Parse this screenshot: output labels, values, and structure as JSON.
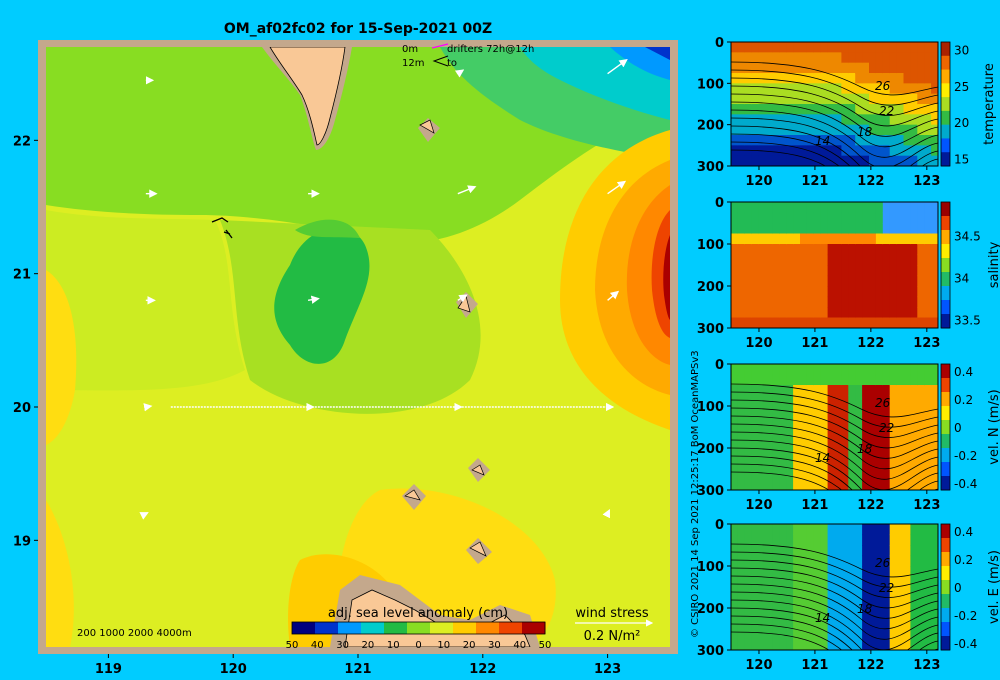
{
  "title": "OM_af02fc02 for 15-Sep-2021 00Z",
  "legend_drifters": {
    "row1_depth": "0m",
    "row2_depth": "12m",
    "label": "drifters 72h@12h",
    "to": "to"
  },
  "depth_key": "200  1000  2000  4000m",
  "sla_colorbar": {
    "title": "adj. sea level anomaly (cm)",
    "ticks": [
      "50",
      "40",
      "30",
      "20",
      "10",
      "0",
      "10",
      "20",
      "30",
      "40",
      "50"
    ]
  },
  "wind_key": {
    "title": "wind stress",
    "value": "0.2 N/m²"
  },
  "credit": "© CSIRO 2021   14 Sep 2021 12:25:17 BoM OceanMAPSv3",
  "colors": {
    "background": "#00ccff",
    "land": "#f9c896",
    "shelf": "#c4a88c",
    "sla_scale": [
      "#00007f",
      "#0033cc",
      "#0099ff",
      "#00cccc",
      "#22bb44",
      "#88dd22",
      "#ddee22",
      "#ffcc00",
      "#ff8800",
      "#ee4400",
      "#aa0000"
    ]
  },
  "chart_data": [
    {
      "type": "heatmap",
      "name": "sea level anomaly map",
      "title": "OM_af02fc02 for 15-Sep-2021 00Z",
      "colorbar_label": "adj. sea level anomaly (cm)",
      "color_range": [
        -50,
        50
      ],
      "xlim": [
        118.5,
        123.5
      ],
      "ylim": [
        18.2,
        22.7
      ],
      "x_ticks": [
        "119",
        "120",
        "121",
        "122",
        "123"
      ],
      "y_ticks": [
        "19",
        "20",
        "21",
        "22"
      ],
      "features": {
        "positive_anomaly_center": {
          "lon": 123.4,
          "lat": 21.0,
          "value_cm": 45
        },
        "negative_anomaly_center": {
          "lon": 120.8,
          "lat": 20.8,
          "value_cm": 0
        },
        "northeast_low": {
          "lon": 123.2,
          "lat": 22.6,
          "value_cm": -30
        }
      },
      "transect": {
        "lat": 20.0,
        "lon_start": 119.5,
        "lon_end": 123.0
      },
      "wind_stress_vectors": [
        {
          "lon": 119.3,
          "lat": 22.45,
          "u": 0.04,
          "v": 0.0
        },
        {
          "lon": 119.3,
          "lat": 21.6,
          "u": 0.06,
          "v": 0.0
        },
        {
          "lon": 119.3,
          "lat": 20.8,
          "u": 0.05,
          "v": 0.0
        },
        {
          "lon": 119.3,
          "lat": 20.0,
          "u": 0.03,
          "v": 0.005
        },
        {
          "lon": 119.3,
          "lat": 19.2,
          "u": 0.01,
          "v": 0.005
        },
        {
          "lon": 120.6,
          "lat": 21.6,
          "u": 0.06,
          "v": 0.0
        },
        {
          "lon": 120.6,
          "lat": 20.8,
          "u": 0.06,
          "v": 0.01
        },
        {
          "lon": 120.6,
          "lat": 20.0,
          "u": 0.03,
          "v": 0.0
        },
        {
          "lon": 121.8,
          "lat": 22.5,
          "u": 0.03,
          "v": 0.02
        },
        {
          "lon": 121.8,
          "lat": 21.6,
          "u": 0.1,
          "v": 0.04
        },
        {
          "lon": 121.8,
          "lat": 20.8,
          "u": 0.05,
          "v": 0.03
        },
        {
          "lon": 121.8,
          "lat": 20.0,
          "u": 0.02,
          "v": 0.0
        },
        {
          "lon": 123.0,
          "lat": 22.5,
          "u": 0.11,
          "v": 0.08
        },
        {
          "lon": 123.0,
          "lat": 21.6,
          "u": 0.1,
          "v": 0.07
        },
        {
          "lon": 123.0,
          "lat": 20.8,
          "u": 0.06,
          "v": 0.05
        },
        {
          "lon": 123.0,
          "lat": 20.0,
          "u": 0.03,
          "v": 0.0
        },
        {
          "lon": 123.0,
          "lat": 19.2,
          "u": 0.01,
          "v": 0.02
        }
      ]
    },
    {
      "type": "heatmap",
      "name": "temperature section",
      "ylabel": "temperature",
      "x_ticks": [
        "120",
        "121",
        "122",
        "123"
      ],
      "y_ticks": [
        "0",
        "100",
        "200",
        "300"
      ],
      "xlim": [
        119.5,
        123.2
      ],
      "ylim": [
        300,
        0
      ],
      "color_range": [
        14,
        31
      ],
      "colorbar_ticks": [
        "15",
        "20",
        "25",
        "30"
      ],
      "contour_labels": [
        "26",
        "22",
        "18",
        "14"
      ]
    },
    {
      "type": "heatmap",
      "name": "salinity section",
      "ylabel": "salinity",
      "x_ticks": [
        "120",
        "121",
        "122",
        "123"
      ],
      "y_ticks": [
        "0",
        "100",
        "200",
        "300"
      ],
      "xlim": [
        119.5,
        123.2
      ],
      "ylim": [
        300,
        0
      ],
      "color_range": [
        33.4,
        34.9
      ],
      "colorbar_ticks": [
        "33.5",
        "34",
        "34.5"
      ]
    },
    {
      "type": "heatmap",
      "name": "northward velocity section",
      "ylabel": "vel. N (m/s)",
      "x_ticks": [
        "120",
        "121",
        "122",
        "123"
      ],
      "y_ticks": [
        "0",
        "100",
        "200",
        "300"
      ],
      "xlim": [
        119.5,
        123.2
      ],
      "ylim": [
        300,
        0
      ],
      "color_range": [
        -0.45,
        0.45
      ],
      "colorbar_ticks": [
        "0.4",
        "0.2",
        "0",
        "-0.2",
        "-0.4"
      ],
      "contour_labels": [
        "26",
        "22",
        "18",
        "14"
      ]
    },
    {
      "type": "heatmap",
      "name": "eastward velocity section",
      "ylabel": "vel. E (m/s)",
      "x_ticks": [
        "120",
        "121",
        "122",
        "123"
      ],
      "y_ticks": [
        "0",
        "100",
        "200",
        "300"
      ],
      "xlim": [
        119.5,
        123.2
      ],
      "ylim": [
        300,
        0
      ],
      "color_range": [
        -0.45,
        0.45
      ],
      "colorbar_ticks": [
        "0.4",
        "0.2",
        "0",
        "-0.2",
        "-0.4"
      ],
      "contour_labels": [
        "26",
        "22",
        "18",
        "14"
      ]
    }
  ]
}
